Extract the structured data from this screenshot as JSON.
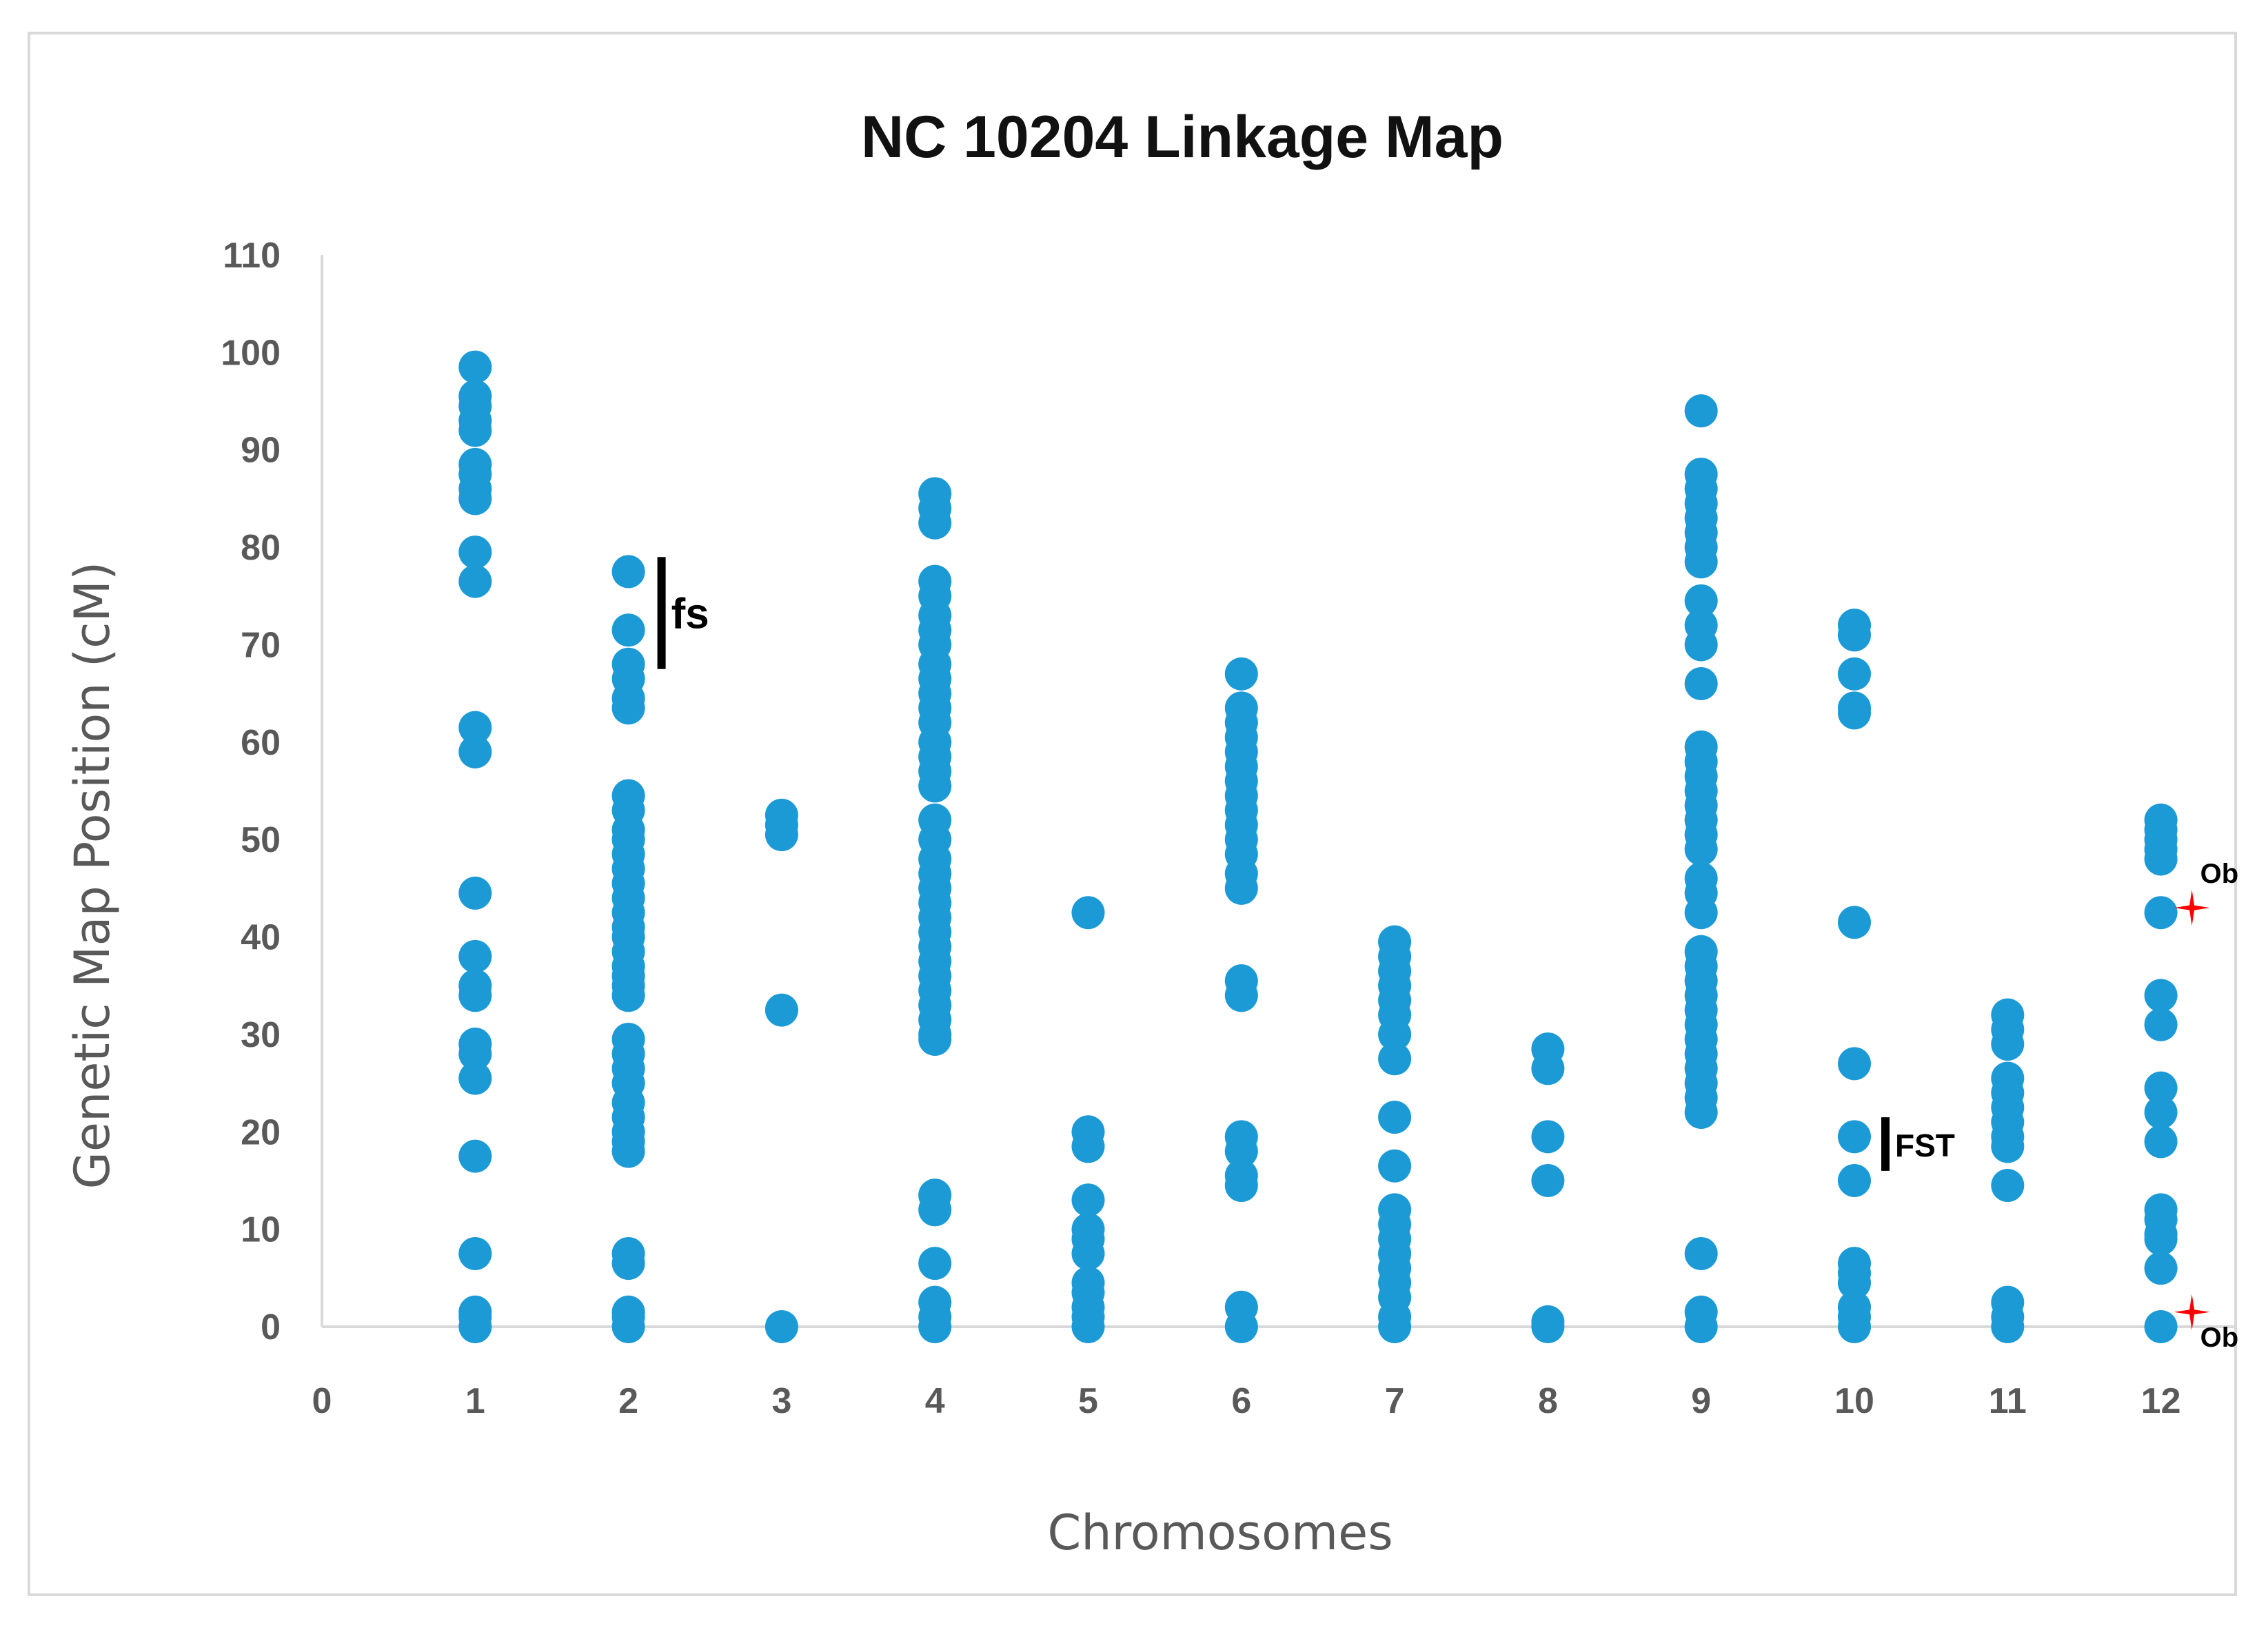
{
  "chart_data": {
    "type": "scatter",
    "title": "NC 10204 Linkage Map",
    "xlabel": "Chromosomes",
    "ylabel": "Genetic Map Position (cM)",
    "xlim": [
      0,
      12
    ],
    "ylim": [
      0,
      110
    ],
    "x_ticks": [
      "0",
      "1",
      "2",
      "3",
      "4",
      "5",
      "6",
      "7",
      "8",
      "9",
      "10",
      "11",
      "12"
    ],
    "y_ticks": [
      "0",
      "10",
      "20",
      "30",
      "40",
      "50",
      "60",
      "70",
      "80",
      "90",
      "100",
      "110"
    ],
    "grid": false,
    "marker_color": "#1b9ad6",
    "series": [
      {
        "chromosome": 1,
        "positions": [
          98.5,
          95.5,
          94.5,
          93,
          92,
          88.5,
          87.5,
          86,
          85,
          79.5,
          76.5,
          61.5,
          59,
          44.5,
          38,
          35,
          34,
          29,
          28,
          25.5,
          17.5,
          7.5,
          1.5,
          1,
          0
        ]
      },
      {
        "chromosome": 2,
        "positions": [
          77.5,
          71.5,
          68,
          66.5,
          64.5,
          63.5,
          54.5,
          53,
          51,
          50,
          48.5,
          47,
          45.5,
          44,
          42.5,
          41,
          40,
          38.5,
          37,
          36,
          35,
          34,
          29.5,
          28,
          26.5,
          25,
          23,
          21.5,
          20,
          19,
          18,
          7.5,
          6.5,
          1.5,
          1,
          0
        ]
      },
      {
        "chromosome": 3,
        "positions": [
          52.5,
          51.5,
          50.5,
          32.5,
          0
        ]
      },
      {
        "chromosome": 4,
        "positions": [
          85.5,
          84,
          82.5,
          76.5,
          75,
          73,
          71.5,
          70,
          68,
          66.5,
          65,
          63.5,
          62,
          60,
          58.5,
          57,
          55.5,
          52,
          50,
          48,
          46.5,
          45,
          43.5,
          42,
          40.5,
          39,
          37.5,
          36,
          34.5,
          33,
          31.5,
          30,
          29.5,
          13.5,
          12,
          6.5,
          2.5,
          1,
          0
        ]
      },
      {
        "chromosome": 5,
        "positions": [
          42.5,
          20,
          18.5,
          13,
          10,
          9,
          7.5,
          4.5,
          3.5,
          2,
          1,
          0
        ]
      },
      {
        "chromosome": 6,
        "positions": [
          67,
          63.5,
          62,
          60.5,
          59,
          57.5,
          56,
          54.5,
          53,
          51.5,
          50,
          48.5,
          46.5,
          45,
          35.5,
          34,
          19.5,
          18,
          15.5,
          14.5,
          2,
          0
        ]
      },
      {
        "chromosome": 7,
        "positions": [
          39.5,
          38,
          36.5,
          35,
          33.5,
          32,
          30,
          27.5,
          21.5,
          16.5,
          12,
          10.5,
          9,
          7.5,
          6,
          4.5,
          3,
          1,
          0
        ]
      },
      {
        "chromosome": 8,
        "positions": [
          28.5,
          26.5,
          19.5,
          15,
          0.5,
          0
        ]
      },
      {
        "chromosome": 9,
        "positions": [
          94,
          87.5,
          86,
          84.5,
          83,
          81.5,
          80,
          78.5,
          74.5,
          72,
          70,
          66,
          59.5,
          58,
          56.5,
          55,
          53.5,
          52,
          50.5,
          49,
          46,
          44.5,
          42.5,
          38.5,
          37,
          35.5,
          34,
          32.5,
          31,
          29.5,
          28,
          26.5,
          25,
          23.5,
          22,
          7.5,
          1.5,
          0
        ]
      },
      {
        "chromosome": 10,
        "positions": [
          72,
          71,
          67,
          63.5,
          63,
          41.5,
          27,
          19.5,
          15,
          6.5,
          5.5,
          4.5,
          2,
          1,
          0
        ]
      },
      {
        "chromosome": 11,
        "positions": [
          32,
          30.5,
          29,
          25.5,
          24,
          22.5,
          21,
          19.5,
          18.5,
          14.5,
          2.5,
          1,
          0
        ]
      },
      {
        "chromosome": 12,
        "positions": [
          52,
          51,
          50,
          49,
          48,
          42.5,
          34,
          31,
          24.5,
          22,
          19,
          12,
          11,
          9.5,
          9,
          6,
          0
        ]
      }
    ],
    "annotations": [
      {
        "label": "fs",
        "chromosome": 2,
        "y_range": [
          67.5,
          79
        ]
      },
      {
        "label": "FST",
        "chromosome": 10,
        "y_range": [
          16,
          21.5
        ]
      },
      {
        "label": "Ob",
        "chromosome": 12,
        "marker": "red-star",
        "marker_color": "#ff0000",
        "y": 43
      },
      {
        "label": "Ob",
        "chromosome": 12,
        "marker": "red-star",
        "marker_color": "#ff0000",
        "y": 1.5
      }
    ]
  }
}
